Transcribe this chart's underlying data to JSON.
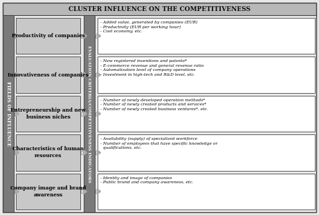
{
  "title": "CLUSTER INFLUENCE ON THE COMPETITIVENESS",
  "left_label": "FIELDS OF INFLUENCE",
  "right_label": "EVALUATION CRITERIA/COMPETITIVENESS INDICATORS",
  "left_boxes": [
    "Productivity of companies",
    "Innovativeness of companies",
    "Entrepreneurship and new\nbusiness niches",
    "Characteristics of human\nresources",
    "Company image and brand\nawareness"
  ],
  "right_boxes": [
    "- Added value, generated by companies (EUR)\n- Productivity (EUR per working hour)\n- Cost economy, etc.",
    "- New registered inventions and patents*\n- E-commerce revenue and general revenue ratio\n- Automatization level of company operations\n- Investment in high-tech and R&D level, etc.",
    "- Number of newly developed operation methods*\n- Number of newly created products and services*\n- Number of newly created business ventures*, etc.",
    "- Availability (supply) of specialized workforce\n- Number of employees that have specific knowledge or\n  qualifications, etc.",
    "- Identity and image of companies\n- Public brand and company awareness, etc."
  ],
  "title_bg": "#b8b8b8",
  "left_label_bg": "#7a7a7a",
  "right_label_bg": "#7a7a7a",
  "left_box_bg": "#c8c8c8",
  "right_box_bg": "#ffffff",
  "outer_bg": "#e8e8e8",
  "border_color": "#444444",
  "arrow_color": "#aaaaaa"
}
